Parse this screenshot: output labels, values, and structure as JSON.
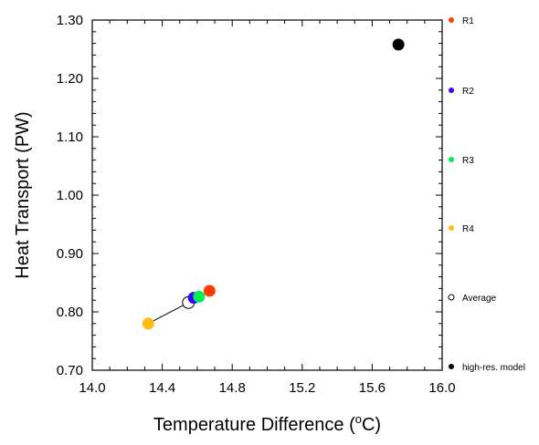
{
  "chart_data": {
    "type": "scatter",
    "xlabel_prefix": "Temperature Difference (",
    "xlabel_sup": "o",
    "xlabel_suffix": "C)",
    "ylabel": "Heat Transport (PW)",
    "xlim": [
      14.0,
      16.0
    ],
    "ylim": [
      0.7,
      1.3
    ],
    "xticks": [
      14.0,
      14.4,
      14.8,
      15.2,
      15.6,
      16.0
    ],
    "xtick_labels": [
      "14.0",
      "14.4",
      "14.8",
      "15.2",
      "15.6",
      "16.0"
    ],
    "yticks": [
      0.7,
      0.8,
      0.9,
      1.0,
      1.1,
      1.2,
      1.3
    ],
    "ytick_labels": [
      "0.70",
      "0.80",
      "0.90",
      "1.00",
      "1.10",
      "1.20",
      "1.30"
    ],
    "legend_position": "right",
    "series": [
      {
        "name": "R1",
        "color": "#ff3c00",
        "x": 14.67,
        "y": 0.836,
        "filled": true
      },
      {
        "name": "R2",
        "color": "#3c00ff",
        "x": 14.58,
        "y": 0.824,
        "filled": true
      },
      {
        "name": "R3",
        "color": "#00ee55",
        "x": 14.61,
        "y": 0.826,
        "filled": true
      },
      {
        "name": "R4",
        "color": "#ffbb11",
        "x": 14.32,
        "y": 0.78,
        "filled": true
      },
      {
        "name": "Average",
        "color": "#000000",
        "x": 14.55,
        "y": 0.816,
        "filled": false
      },
      {
        "name": "high-res. model",
        "color": "#000000",
        "x": 15.75,
        "y": 1.258,
        "filled": true
      }
    ],
    "connector": {
      "from": "R4",
      "to": "Average",
      "color": "#000000"
    }
  }
}
